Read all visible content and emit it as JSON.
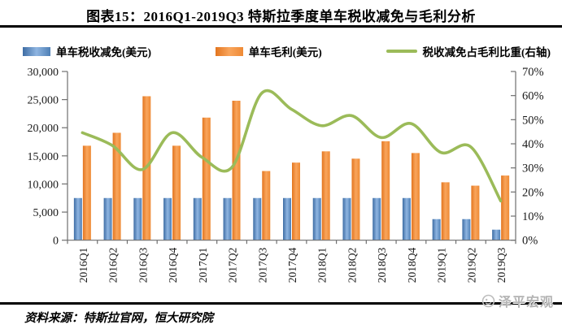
{
  "header": {
    "title": "图表15：2016Q1-2019Q3 特斯拉季度单车税收减免与毛利分析"
  },
  "legend": {
    "items": [
      {
        "label": "单车税收减免(美元)",
        "marker": "bar-swatch",
        "color": "#4F81BD"
      },
      {
        "label": "单车毛利(美元)",
        "marker": "bar-swatch",
        "color": "#F79646"
      },
      {
        "label": "税收减免占毛利比重(右轴)",
        "marker": "line-swatch",
        "color": "#9BBB59"
      }
    ]
  },
  "chart_data": {
    "type": "bar",
    "subtype": "combo-bar-line-dual-axis",
    "title": "2016Q1-2019Q3 特斯拉季度单车税收减免与毛利分析",
    "categories": [
      "2016Q1",
      "2016Q2",
      "2016Q3",
      "2016Q4",
      "2017Q1",
      "2017Q2",
      "2017Q3",
      "2017Q4",
      "2018Q1",
      "2018Q2",
      "2018Q3",
      "2018Q4",
      "2019Q1",
      "2019Q2",
      "2019Q3"
    ],
    "series": [
      {
        "name": "单车税收减免(美元)",
        "type": "bar",
        "axis": "left",
        "color": "#4F81BD",
        "values": [
          7500,
          7500,
          7500,
          7500,
          7500,
          7500,
          7500,
          7500,
          7500,
          7500,
          7500,
          7500,
          3750,
          3750,
          1875
        ]
      },
      {
        "name": "单车毛利(美元)",
        "type": "bar",
        "axis": "left",
        "color": "#F79646",
        "values": [
          16800,
          19100,
          25600,
          16800,
          21800,
          24800,
          12300,
          13800,
          15800,
          14500,
          17600,
          15500,
          10300,
          9700,
          11500
        ]
      },
      {
        "name": "税收减免占毛利比重(右轴)",
        "type": "line",
        "axis": "right",
        "color": "#9BBB59",
        "values": [
          44.6,
          39.3,
          29.3,
          44.6,
          34.4,
          30.2,
          61.0,
          54.3,
          47.5,
          51.7,
          42.6,
          48.4,
          36.4,
          38.7,
          16.3
        ]
      }
    ],
    "left_axis": {
      "min": 0,
      "max": 30000,
      "step": 5000,
      "tick_labels": [
        "0",
        "5,000",
        "10,000",
        "15,000",
        "20,000",
        "25,000",
        "30,000"
      ]
    },
    "right_axis": {
      "min": 0,
      "max": 70,
      "step": 10,
      "tick_labels": [
        "0%",
        "10%",
        "20%",
        "30%",
        "40%",
        "50%",
        "60%",
        "70%"
      ]
    },
    "grid": false,
    "legend_position": "top",
    "line_smooth": true
  },
  "footer": {
    "source": "资料来源：特斯拉官网，恒大研究院",
    "watermark": "泽平宏观"
  }
}
